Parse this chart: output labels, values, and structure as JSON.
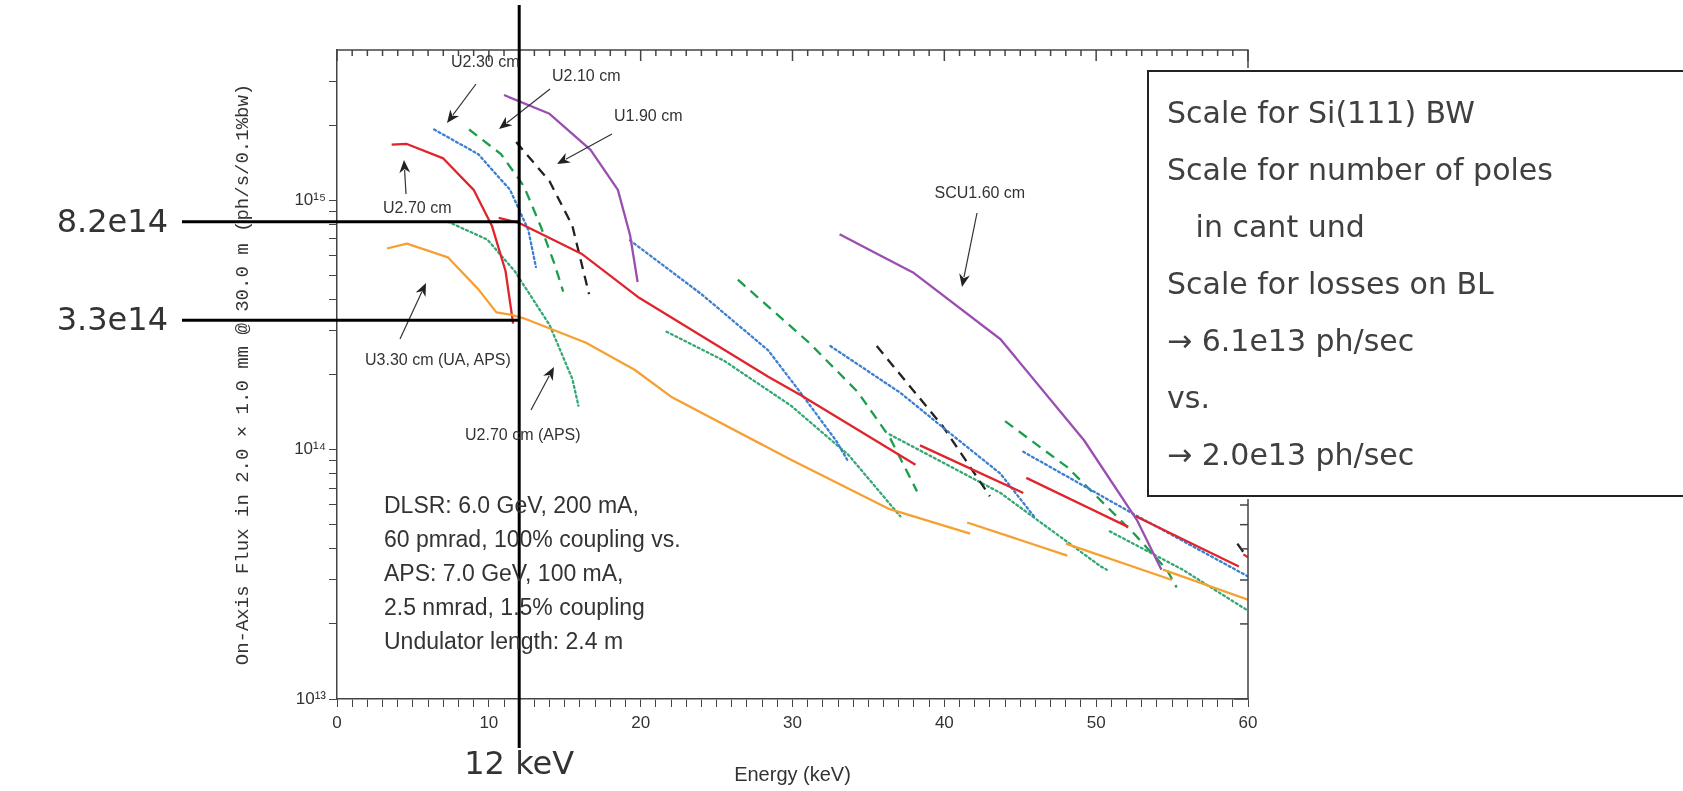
{
  "chart_data": {
    "type": "line",
    "xlabel": "Energy (keV)",
    "ylabel": "On-Axis Flux in 2.0 × 1.0 mm @ 30.0 m (ph/s/0.1%bw)",
    "xlim": [
      0,
      60
    ],
    "ylim": [
      10000000000000.0,
      4000000000000000.0
    ],
    "log": "y",
    "grid": false,
    "legend": false,
    "marker": "none",
    "xticks": [
      0,
      {
        "value": 1,
        "label": null
      },
      {
        "value": 2,
        "label": null
      },
      {
        "value": 3,
        "label": null
      },
      {
        "value": 4,
        "label": null
      },
      {
        "value": 5,
        "label": null
      },
      {
        "value": 6,
        "label": null
      },
      {
        "value": 7,
        "label": null
      },
      {
        "value": 8,
        "label": null
      },
      {
        "value": 9,
        "label": null
      },
      10,
      {
        "value": 11,
        "label": null
      },
      {
        "value": 12,
        "label": null
      },
      {
        "value": 13,
        "label": null
      },
      {
        "value": 14,
        "label": null
      },
      {
        "value": 15,
        "label": null
      },
      {
        "value": 16,
        "label": null
      },
      {
        "value": 17,
        "label": null
      },
      {
        "value": 18,
        "label": null
      },
      {
        "value": 19,
        "label": null
      },
      20,
      {
        "value": 21,
        "label": null
      },
      {
        "value": 22,
        "label": null
      },
      {
        "value": 23,
        "label": null
      },
      {
        "value": 24,
        "label": null
      },
      {
        "value": 25,
        "label": null
      },
      {
        "value": 26,
        "label": null
      },
      {
        "value": 27,
        "label": null
      },
      {
        "value": 28,
        "label": null
      },
      {
        "value": 29,
        "label": null
      },
      30,
      {
        "value": 31,
        "label": null
      },
      {
        "value": 32,
        "label": null
      },
      {
        "value": 33,
        "label": null
      },
      {
        "value": 34,
        "label": null
      },
      {
        "value": 35,
        "label": null
      },
      {
        "value": 36,
        "label": null
      },
      {
        "value": 37,
        "label": null
      },
      {
        "value": 38,
        "label": null
      },
      {
        "value": 39,
        "label": null
      },
      40,
      {
        "value": 41,
        "label": null
      },
      {
        "value": 42,
        "label": null
      },
      {
        "value": 43,
        "label": null
      },
      {
        "value": 44,
        "label": null
      },
      {
        "value": 45,
        "label": null
      },
      {
        "value": 46,
        "label": null
      },
      {
        "value": 47,
        "label": null
      },
      {
        "value": 48,
        "label": null
      },
      {
        "value": 49,
        "label": null
      },
      50,
      {
        "value": 51,
        "label": null
      },
      {
        "value": 52,
        "label": null
      },
      {
        "value": 53,
        "label": null
      },
      {
        "value": 54,
        "label": null
      },
      {
        "value": 55,
        "label": null
      },
      {
        "value": 56,
        "label": null
      },
      {
        "value": 57,
        "label": null
      },
      {
        "value": 58,
        "label": null
      },
      {
        "value": 59,
        "label": null
      },
      60
    ],
    "yticks": [
      {
        "value": 10000000000000.0,
        "label": "10¹³"
      },
      {
        "value": 20000000000000.0,
        "label": null
      },
      {
        "value": 30000000000000.0,
        "label": null
      },
      {
        "value": 40000000000000.0,
        "label": null
      },
      {
        "value": 50000000000000.0,
        "label": null
      },
      {
        "value": 60000000000000.0,
        "label": null
      },
      {
        "value": 70000000000000.0,
        "label": null
      },
      {
        "value": 80000000000000.0,
        "label": null
      },
      {
        "value": 90000000000000.0,
        "label": null
      },
      {
        "value": 100000000000000.0,
        "label": "10¹⁴"
      },
      {
        "value": 200000000000000.0,
        "label": null
      },
      {
        "value": 300000000000000.0,
        "label": null
      },
      {
        "value": 400000000000000.0,
        "label": null
      },
      {
        "value": 500000000000000.0,
        "label": null
      },
      {
        "value": 600000000000000.0,
        "label": null
      },
      {
        "value": 700000000000000.0,
        "label": null
      },
      {
        "value": 800000000000000.0,
        "label": null
      },
      {
        "value": 900000000000000.0,
        "label": null
      },
      {
        "value": 1000000000000000.0,
        "label": "10¹⁵"
      },
      {
        "value": 2000000000000000.0,
        "label": null
      },
      {
        "value": 3000000000000000.0,
        "label": null
      }
    ],
    "series": [
      {
        "color": "#f5a030",
        "line_style": "solid",
        "x": [
          3.3,
          4.6,
          7.3,
          9.3,
          10.5,
          11.5,
          12.3,
          16.4,
          19.6,
          22.0,
          29.9,
          36.3,
          41.7
        ],
        "values": [
          640000000000000.0,
          670000000000000.0,
          590000000000000.0,
          440000000000000.0,
          355000000000000.0,
          347000000000000.0,
          336000000000000.0,
          268000000000000.0,
          209000000000000.0,
          163000000000000.0,
          91000000000000.0,
          58000000000000.0,
          46000000000000.0
        ]
      },
      {
        "color": "#f5a030",
        "line_style": "solid",
        "x": [
          41.5,
          48.1
        ],
        "values": [
          51000000000000.0,
          37600000000000.0
        ]
      },
      {
        "color": "#f5a030",
        "line_style": "solid",
        "x": [
          48.0,
          55.0
        ],
        "values": [
          42000000000000.0,
          30000000000000.0
        ]
      },
      {
        "color": "#f5a030",
        "line_style": "solid",
        "x": [
          54.4,
          60
        ],
        "values": [
          33000000000000.0,
          25000000000000.0
        ]
      },
      {
        "color": "#e1242c",
        "line_style": "solid",
        "x": [
          3.6,
          4.6,
          7.0,
          9.0,
          10.2,
          11.1,
          11.6
        ],
        "values": [
          1670000000000000.0,
          1680000000000000.0,
          1470000000000000.0,
          1100000000000000.0,
          790000000000000.0,
          520000000000000.0,
          320000000000000.0
        ]
      },
      {
        "color": "#e1242c",
        "line_style": "solid",
        "x": [
          10.65,
          12.0,
          16.1,
          19.9,
          28.4,
          30.5,
          38.1
        ],
        "values": [
          850000000000000.0,
          810000000000000.0,
          610000000000000.0,
          406000000000000.0,
          196000000000000.0,
          166000000000000.0,
          87000000000000.0
        ]
      },
      {
        "color": "#e1242c",
        "line_style": "solid",
        "x": [
          38.4,
          45.2
        ],
        "values": [
          104000000000000.0,
          67000000000000.0
        ]
      },
      {
        "color": "#e1242c",
        "line_style": "solid",
        "x": [
          45.4,
          52.1
        ],
        "values": [
          77000000000000.0,
          49000000000000.0
        ]
      },
      {
        "color": "#e1242c",
        "line_style": "solid",
        "x": [
          52.6,
          59.4
        ],
        "values": [
          54000000000000.0,
          34000000000000.0
        ]
      },
      {
        "color": "#e1242c",
        "line_style": "solid",
        "x": [
          59.7,
          60
        ],
        "values": [
          38000000000000.0,
          37000000000000.0
        ]
      },
      {
        "color": "#9a4eb0",
        "line_style": "solid",
        "x": [
          11.0,
          14.0,
          16.7,
          18.5,
          19.3,
          19.8
        ],
        "values": [
          2640000000000000.0,
          2220000000000000.0,
          1590000000000000.0,
          1100000000000000.0,
          725000000000000.0,
          470000000000000.0
        ]
      },
      {
        "color": "#9a4eb0",
        "line_style": "solid",
        "x": [
          33.1,
          38.0,
          43.7,
          49.2,
          52.7,
          54.3
        ],
        "values": [
          730000000000000.0,
          510000000000000.0,
          277000000000000.0,
          109000000000000.0,
          52000000000000.0,
          33000000000000.0
        ]
      },
      {
        "color": "#3c7fcf",
        "line_style": "dotted",
        "x": [
          6.4,
          9.3,
          11.4,
          12.6,
          13.1
        ],
        "values": [
          1920000000000000.0,
          1530000000000000.0,
          1100000000000000.0,
          760000000000000.0,
          540000000000000.0
        ]
      },
      {
        "color": "#3c7fcf",
        "line_style": "dotted",
        "x": [
          19.3,
          24.0,
          28.4,
          30.5,
          32.9,
          33.6
        ],
        "values": [
          690000000000000.0,
          420000000000000.0,
          250000000000000.0,
          170000000000000.0,
          108000000000000.0,
          91000000000000.0
        ]
      },
      {
        "color": "#3c7fcf",
        "line_style": "dotted",
        "x": [
          32.5,
          37.1,
          40.4,
          43.7,
          45.9
        ],
        "values": [
          260000000000000.0,
          169000000000000.0,
          116000000000000.0,
          80000000000000.0,
          54000000000000.0
        ]
      },
      {
        "color": "#3c7fcf",
        "line_style": "dotted",
        "x": [
          45.2,
          52.5,
          60
        ],
        "values": [
          98000000000000.0,
          55000000000000.0,
          31000000000000.0
        ]
      },
      {
        "color": "#1b9e4b",
        "line_style": "dashed",
        "x": [
          8.7,
          10.8,
          12.3,
          13.4,
          14.3,
          14.9
        ],
        "values": [
          1920000000000000.0,
          1530000000000000.0,
          1140000000000000.0,
          790000000000000.0,
          560000000000000.0,
          430000000000000.0
        ]
      },
      {
        "color": "#1b9e4b",
        "line_style": "dashed",
        "x": [
          26.4,
          31.1,
          34.3,
          36.4,
          38.2
        ],
        "values": [
          480000000000000.0,
          268000000000000.0,
          170000000000000.0,
          112000000000000.0,
          68000000000000.0
        ]
      },
      {
        "color": "#1b9e4b",
        "line_style": "dashed",
        "x": [
          44.0,
          48.1,
          52.5,
          54.65,
          55.3
        ],
        "values": [
          130000000000000.0,
          85000000000000.0,
          46000000000000.0,
          33000000000000.0,
          28000000000000.0
        ]
      },
      {
        "color": "#222222",
        "line_style": "dashed",
        "x": [
          11.8,
          14.0,
          15.5,
          16.6
        ],
        "values": [
          1710000000000000.0,
          1190000000000000.0,
          790000000000000.0,
          420000000000000.0
        ]
      },
      {
        "color": "#222222",
        "line_style": "dashed",
        "x": [
          35.55,
          39.9,
          43.0
        ],
        "values": [
          260000000000000.0,
          124000000000000.0,
          65000000000000.0
        ]
      },
      {
        "color": "#222222",
        "line_style": "dashed",
        "x": [
          59.3,
          59.8
        ],
        "values": [
          42000000000000.0,
          38000000000000.0
        ]
      },
      {
        "color": "#35a874",
        "line_style": "dotted",
        "x": [
          7.3,
          9.9,
          11.7,
          14.0,
          15.5,
          15.9
        ],
        "values": [
          820000000000000.0,
          695000000000000.0,
          520000000000000.0,
          316000000000000.0,
          192000000000000.0,
          150000000000000.0
        ]
      },
      {
        "color": "#35a874",
        "line_style": "dotted",
        "x": [
          21.7,
          25.5,
          29.9,
          33.7,
          37.1
        ],
        "values": [
          297000000000000.0,
          227000000000000.0,
          150000000000000.0,
          95000000000000.0,
          54000000000000.0
        ]
      },
      {
        "color": "#35a874",
        "line_style": "dotted",
        "x": [
          36.4,
          43.7,
          50.3,
          50.7
        ],
        "values": [
          115000000000000.0,
          67000000000000.0,
          34000000000000.0,
          33000000000000.0
        ]
      },
      {
        "color": "#35a874",
        "line_style": "dotted",
        "x": [
          50.9,
          55.7,
          60
        ],
        "values": [
          47000000000000.0,
          33000000000000.0,
          22600000000000.0
        ]
      }
    ],
    "ref_lines": [
      {
        "axis": "y",
        "value": 820000000000000.0,
        "label": "8.2e14",
        "color": "#000000"
      },
      {
        "axis": "y",
        "value": 330000000000000.0,
        "label": "3.3e14",
        "color": "#000000"
      },
      {
        "axis": "x",
        "value": 12,
        "label": "12 keV",
        "color": "#000000"
      }
    ],
    "annotations": [
      "U2.30 cm",
      "U2.10 cm",
      "U1.90 cm",
      "U2.70 cm",
      "U3.30 cm (UA, APS)",
      "U2.70 cm (APS)",
      "SCU1.60 cm",
      "DLSR: 6.0 GeV, 200 mA,\n60 pmrad, 100% coupling vs.\nAPS: 7.0 GeV, 100 mA,\n2.5 nmrad, 1.5% coupling\nUndulator length: 2.4 m",
      "Scale for Si(111) BW\nScale for number of poles\n   in cant und\nScale for losses on BL\n→ 6.1e13 ph/sec\nvs.\n→ 2.0e13 ph/sec"
    ]
  }
}
